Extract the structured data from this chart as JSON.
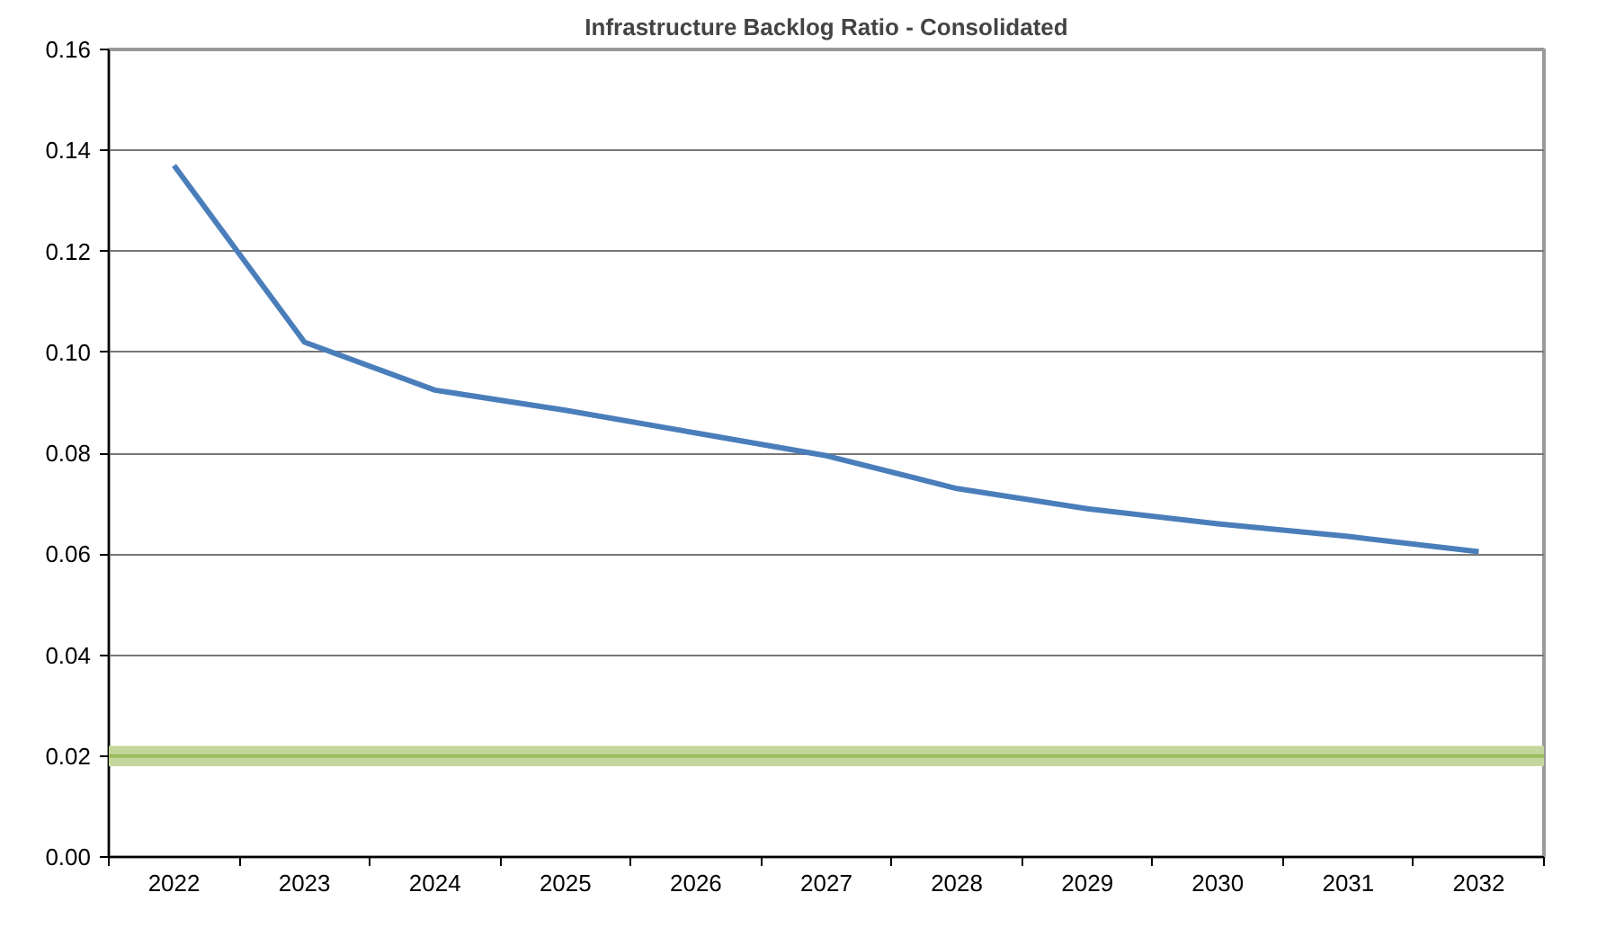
{
  "chart_data": {
    "type": "line",
    "title": "Infrastructure Backlog Ratio - Consolidated",
    "categories": [
      "2022",
      "2023",
      "2024",
      "2025",
      "2026",
      "2027",
      "2028",
      "2029",
      "2030",
      "2031",
      "2032"
    ],
    "series": [
      {
        "color": "#4a7ebb",
        "values": [
          0.137,
          0.102,
          0.0925,
          0.0885,
          0.084,
          0.0795,
          0.073,
          0.069,
          0.066,
          0.0635,
          0.0605
        ]
      }
    ],
    "ylim": [
      0,
      0.16
    ],
    "yticks": [
      {
        "value": 0,
        "label": "0.00"
      },
      {
        "value": 0.02,
        "label": "0.02"
      },
      {
        "value": 0.04,
        "label": "0.04"
      },
      {
        "value": 0.06,
        "label": "0.06"
      },
      {
        "value": 0.08,
        "label": "0.08"
      },
      {
        "value": 0.1,
        "label": "0.10"
      },
      {
        "value": 0.12,
        "label": "0.12"
      },
      {
        "value": 0.14,
        "label": "0.14"
      },
      {
        "value": 0.16,
        "label": "0.16"
      }
    ],
    "bands": [
      {
        "axis": "y",
        "from": 0.018,
        "to": 0.022,
        "color": "#c3d69b"
      }
    ],
    "ref_lines": [
      {
        "axis": "y",
        "value": 0.02,
        "color": "#9bbb59",
        "line_style": "solid"
      }
    ],
    "grid": "y",
    "marker": "none",
    "line_style": "solid"
  }
}
